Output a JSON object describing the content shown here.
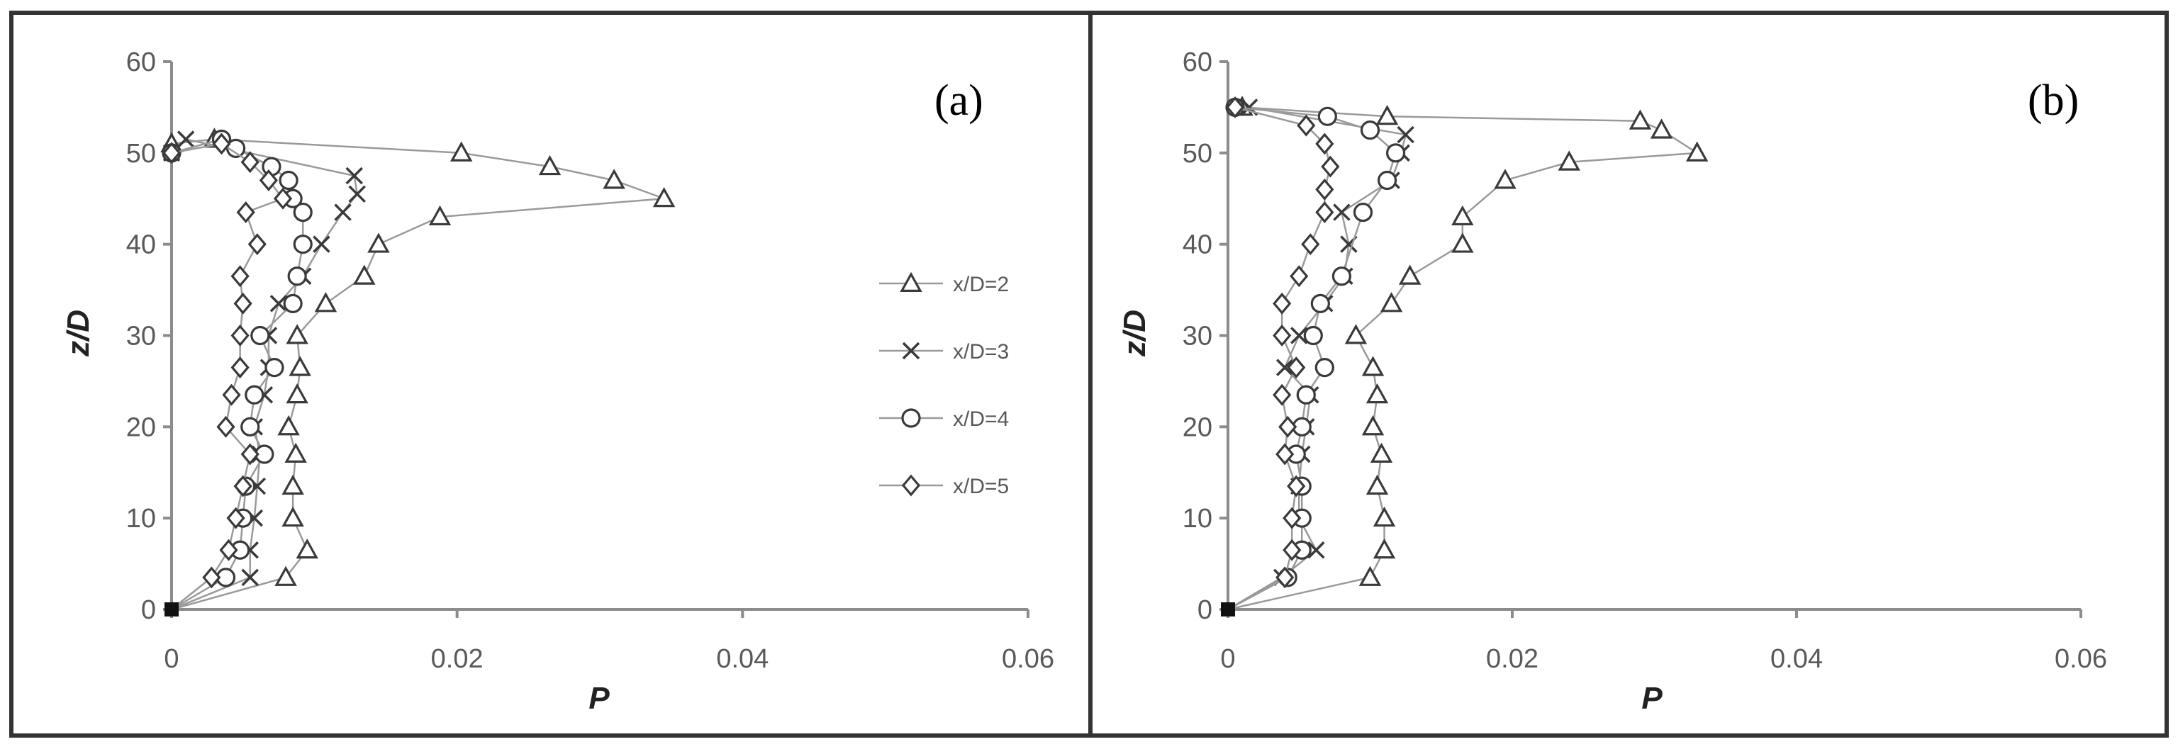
{
  "legend": [
    "x/D=2",
    "x/D=3",
    "x/D=4",
    "x/D=5"
  ],
  "chart_data": [
    {
      "type": "scatter",
      "panel_label": "(a)",
      "xlabel": "P",
      "ylabel": "z/D",
      "xlim": [
        0,
        0.06
      ],
      "ylim": [
        0,
        60
      ],
      "xticks": [
        "0",
        "0.02",
        "0.04",
        "0.06"
      ],
      "yticks": [
        "0",
        "10",
        "20",
        "30",
        "40",
        "50",
        "60"
      ],
      "legend_position": "right",
      "series": [
        {
          "name": "x/D=2",
          "marker": "triangle",
          "x": [
            0,
            0.008,
            0.0095,
            0.0085,
            0.0085,
            0.0087,
            0.0082,
            0.0088,
            0.009,
            0.0088,
            0.0108,
            0.0135,
            0.0145,
            0.0188,
            0.0345,
            0.031,
            0.0265,
            0.0203,
            0.003,
            0
          ],
          "y": [
            0,
            3.5,
            6.5,
            10,
            13.5,
            17,
            20,
            23.5,
            26.5,
            30,
            33.5,
            36.5,
            40,
            43,
            45,
            47,
            48.5,
            50,
            51.5,
            51
          ]
        },
        {
          "name": "x/D=3",
          "marker": "x",
          "x": [
            0,
            0.0055,
            0.0055,
            0.0058,
            0.006,
            0.0062,
            0.0058,
            0.0065,
            0.0068,
            0.0068,
            0.0075,
            0.0092,
            0.0105,
            0.012,
            0.013,
            0.0128,
            0.001,
            0
          ],
          "y": [
            0,
            3.5,
            6.5,
            10,
            13.5,
            17,
            20,
            23.5,
            26.5,
            30,
            33.5,
            36.5,
            40,
            43.5,
            45.5,
            47.5,
            51.5,
            50
          ]
        },
        {
          "name": "x/D=4",
          "marker": "circle",
          "x": [
            0,
            0.0038,
            0.0048,
            0.005,
            0.0052,
            0.0065,
            0.0055,
            0.0058,
            0.0072,
            0.0062,
            0.0085,
            0.0088,
            0.0092,
            0.0092,
            0.0085,
            0.0082,
            0.007,
            0.0045,
            0.0035,
            0
          ],
          "y": [
            0,
            3.5,
            6.5,
            10,
            13.5,
            17,
            20,
            23.5,
            26.5,
            30,
            33.5,
            36.5,
            40,
            43.5,
            45,
            47,
            48.5,
            50.5,
            51.5,
            50
          ]
        },
        {
          "name": "x/D=5",
          "marker": "diamond",
          "x": [
            0,
            0.0028,
            0.004,
            0.0045,
            0.005,
            0.0055,
            0.0038,
            0.0042,
            0.0048,
            0.0048,
            0.005,
            0.0048,
            0.006,
            0.0052,
            0.0078,
            0.0068,
            0.0055,
            0.0035,
            0
          ],
          "y": [
            0,
            3.5,
            6.5,
            10,
            13.5,
            17,
            20,
            23.5,
            26.5,
            30,
            33.5,
            36.5,
            40,
            43.5,
            45,
            47,
            49,
            51,
            50
          ]
        }
      ]
    },
    {
      "type": "scatter",
      "panel_label": "(b)",
      "xlabel": "P",
      "ylabel": "z/D",
      "xlim": [
        0,
        0.06
      ],
      "ylim": [
        0,
        60
      ],
      "xticks": [
        "0",
        "0.02",
        "0.04",
        "0.06"
      ],
      "yticks": [
        "0",
        "10",
        "20",
        "30",
        "40",
        "50",
        "60"
      ],
      "series": [
        {
          "name": "x/D=2",
          "marker": "triangle",
          "x": [
            0,
            0.01,
            0.011,
            0.011,
            0.0105,
            0.0108,
            0.0102,
            0.0105,
            0.0102,
            0.009,
            0.0115,
            0.0128,
            0.0165,
            0.0165,
            0.0195,
            0.024,
            0.033,
            0.0305,
            0.029,
            0.0112,
            0.001
          ],
          "y": [
            0,
            3.5,
            6.5,
            10,
            13.5,
            17,
            20,
            23.5,
            26.5,
            30,
            33.5,
            36.5,
            40,
            43,
            47,
            49,
            50,
            52.5,
            53.5,
            54,
            55
          ]
        },
        {
          "name": "x/D=3",
          "marker": "x",
          "x": [
            0,
            0.0038,
            0.0062,
            0.005,
            0.005,
            0.0052,
            0.0055,
            0.0058,
            0.004,
            0.005,
            0.0068,
            0.0082,
            0.0085,
            0.008,
            0.0115,
            0.0122,
            0.0125,
            0.0015
          ],
          "y": [
            0,
            3.5,
            6.5,
            10,
            13.5,
            17,
            20,
            23.5,
            26.5,
            30,
            33.5,
            36.5,
            40,
            43.5,
            47,
            50,
            52,
            55
          ]
        },
        {
          "name": "x/D=4",
          "marker": "circle",
          "x": [
            0,
            0.0042,
            0.0052,
            0.0052,
            0.0052,
            0.0048,
            0.0052,
            0.0055,
            0.0068,
            0.006,
            0.0065,
            0.008,
            0.0095,
            0.0112,
            0.0118,
            0.01,
            0.007,
            0.0005
          ],
          "y": [
            0,
            3.5,
            6.5,
            10,
            13.5,
            17,
            20,
            23.5,
            26.5,
            30,
            33.5,
            36.5,
            43.5,
            47,
            50,
            52.5,
            54,
            55
          ]
        },
        {
          "name": "x/D=5",
          "marker": "diamond",
          "x": [
            0,
            0.004,
            0.0045,
            0.0045,
            0.0048,
            0.004,
            0.0042,
            0.0038,
            0.0048,
            0.0038,
            0.0038,
            0.005,
            0.0058,
            0.0068,
            0.0068,
            0.0072,
            0.0068,
            0.0055,
            0.0005
          ],
          "y": [
            0,
            3.5,
            6.5,
            10,
            13.5,
            17,
            20,
            23.5,
            26.5,
            30,
            33.5,
            36.5,
            40,
            43.5,
            46,
            48.5,
            51,
            53,
            55
          ]
        }
      ]
    }
  ]
}
